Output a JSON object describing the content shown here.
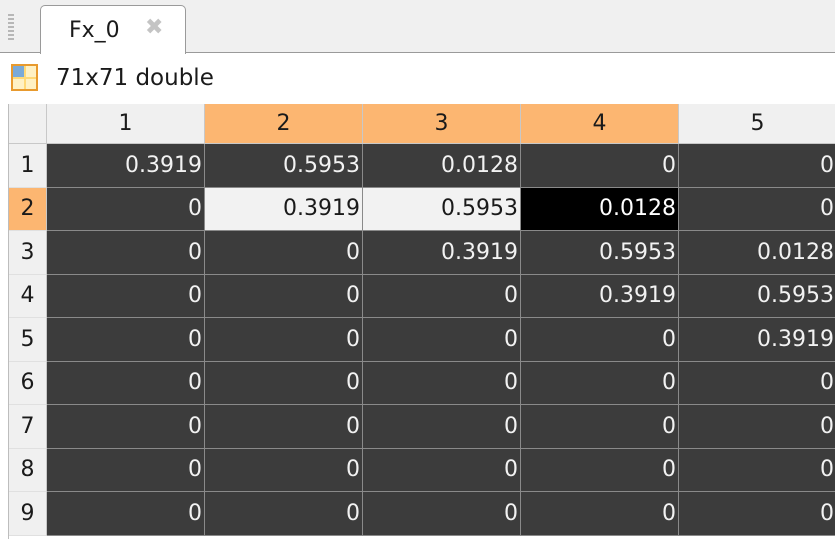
{
  "tab": {
    "title": "Fx_0",
    "close_glyph": "✖"
  },
  "info": {
    "text": "71x71 double",
    "icon": "variable-grid-icon"
  },
  "table": {
    "columns": [
      "1",
      "2",
      "3",
      "4",
      "5"
    ],
    "rows": [
      {
        "label": "1",
        "cells": [
          "0.3919",
          "0.5953",
          "0.0128",
          "0",
          "0"
        ]
      },
      {
        "label": "2",
        "cells": [
          "0",
          "0.3919",
          "0.5953",
          "0.0128",
          "0"
        ]
      },
      {
        "label": "3",
        "cells": [
          "0",
          "0",
          "0.3919",
          "0.5953",
          "0.0128"
        ]
      },
      {
        "label": "4",
        "cells": [
          "0",
          "0",
          "0",
          "0.3919",
          "0.5953"
        ]
      },
      {
        "label": "5",
        "cells": [
          "0",
          "0",
          "0",
          "0",
          "0.3919"
        ]
      },
      {
        "label": "6",
        "cells": [
          "0",
          "0",
          "0",
          "0",
          "0"
        ]
      },
      {
        "label": "7",
        "cells": [
          "0",
          "0",
          "0",
          "0",
          "0"
        ]
      },
      {
        "label": "8",
        "cells": [
          "0",
          "0",
          "0",
          "0",
          "0"
        ]
      },
      {
        "label": "9",
        "cells": [
          "0",
          "0",
          "0",
          "0",
          "0"
        ]
      }
    ],
    "selected_columns": [
      1,
      2,
      3
    ],
    "selected_row": 1,
    "current_cell": {
      "row": 1,
      "col": 3
    }
  },
  "colors": {
    "selection_header": "#fcb671",
    "cell_background": "#3c3c3c",
    "selected_cell": "#f2f2f2",
    "current_cell": "#000000"
  }
}
